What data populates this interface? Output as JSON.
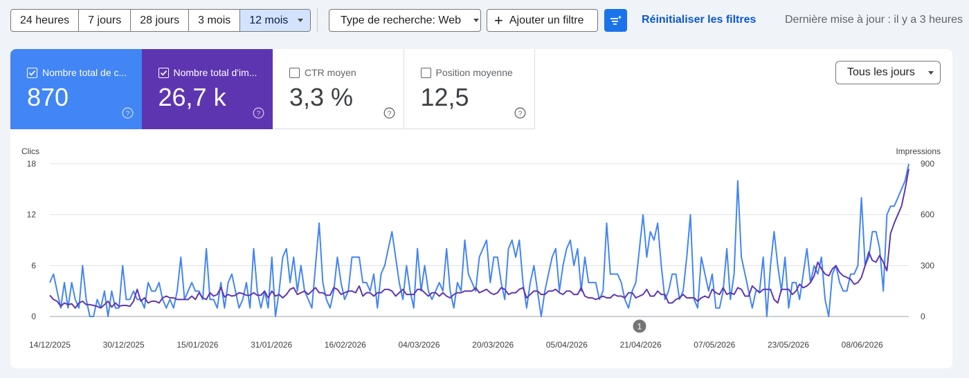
{
  "toolbar": {
    "ranges": [
      "24 heures",
      "7 jours",
      "28 jours",
      "3 mois",
      "12 mois"
    ],
    "active_range": "12 mois",
    "search_type": "Type de recherche: Web",
    "add_filter": "Ajouter un filtre",
    "reset": "Réinitialiser les filtres",
    "last_update": "Dernière mise à jour : il y a 3 heures"
  },
  "metrics": {
    "clicks": {
      "label": "Nombre total de c...",
      "value": "870",
      "checked": true,
      "color": "#4285f4"
    },
    "impressions": {
      "label": "Nombre total d'im...",
      "value": "26,7 k",
      "checked": true,
      "color": "#5e35b1"
    },
    "ctr": {
      "label": "CTR moyen",
      "value": "3,3 %",
      "checked": false
    },
    "position": {
      "label": "Position moyenne",
      "value": "12,5",
      "checked": false
    }
  },
  "days_select": "Tous les jours",
  "annotation_marker": "1",
  "chart_data": {
    "type": "line",
    "left_axis_label": "Clics",
    "right_axis_label": "Impressions",
    "left_ticks": [
      "18",
      "12",
      "6",
      "0"
    ],
    "right_ticks": [
      "900",
      "600",
      "300",
      "0"
    ],
    "ylim_left": [
      0,
      18
    ],
    "ylim_right": [
      0,
      900
    ],
    "x_tick_labels": [
      "14/12/2025",
      "30/12/2025",
      "15/01/2026",
      "31/01/2026",
      "16/02/2026",
      "04/03/2026",
      "20/03/2026",
      "05/04/2026",
      "21/04/2026",
      "07/05/2026",
      "23/05/2026",
      "08/06/2026"
    ],
    "x_range_days": 190,
    "series": [
      {
        "name": "Nombre total de clics",
        "axis": "left",
        "color": "#4285f4",
        "values": [
          4,
          5,
          3,
          1,
          4,
          1,
          4,
          2,
          1,
          6,
          2,
          0,
          0,
          2,
          1,
          3,
          0,
          3,
          1,
          1,
          6,
          2,
          2,
          3,
          2,
          2,
          1,
          4,
          3,
          3,
          4,
          2,
          1,
          2,
          1,
          3,
          7,
          2,
          3,
          4,
          3,
          3,
          2,
          8,
          2,
          2,
          1,
          4,
          1,
          4,
          5,
          3,
          1,
          2,
          4,
          1,
          8,
          3,
          1,
          3,
          1,
          7,
          0,
          3,
          7,
          8,
          4,
          7,
          3,
          6,
          3,
          2,
          1,
          6,
          11,
          4,
          2,
          1,
          3,
          7,
          4,
          2,
          3,
          7,
          7,
          7,
          4,
          4,
          3,
          5,
          1,
          5,
          6,
          8,
          10,
          7,
          4,
          2,
          6,
          3,
          1,
          8,
          3,
          6,
          3,
          2,
          3,
          4,
          3,
          8,
          3,
          1,
          4,
          3,
          9,
          5,
          4,
          3,
          7,
          8,
          9,
          4,
          7,
          7,
          4,
          2,
          8,
          9,
          7,
          9,
          4,
          1,
          4,
          6,
          3,
          0,
          3,
          5,
          7,
          8,
          3,
          6,
          8,
          9,
          6,
          8,
          3,
          7,
          4,
          4,
          4,
          2,
          3,
          11,
          5,
          5,
          5,
          4,
          2,
          1,
          3,
          4,
          8,
          12,
          7,
          10,
          9,
          11,
          6,
          2,
          3,
          5,
          5,
          2,
          3,
          7,
          12,
          2,
          1,
          7,
          5,
          3,
          5,
          1,
          1,
          3,
          8,
          2,
          5,
          16,
          7,
          5,
          3,
          1,
          3,
          3,
          7,
          0,
          6,
          10,
          6,
          3,
          7,
          1,
          4,
          4,
          2,
          5,
          8,
          4,
          6,
          5,
          7,
          2,
          0,
          5,
          6,
          4,
          3,
          3,
          5,
          5,
          6,
          14,
          6,
          7,
          10,
          10,
          8,
          3,
          12,
          13,
          13,
          14,
          15,
          16,
          18
        ],
        "note": "Values estimated from gridlines"
      },
      {
        "name": "Nombre total d'impressions",
        "axis": "right",
        "color": "#5e35b1",
        "values": [
          2.5,
          2,
          1.8,
          1.2,
          1.6,
          1.4,
          1.5,
          1,
          1.6,
          1.8,
          1.4,
          1.4,
          1.3,
          1.2,
          1,
          1.4,
          1.8,
          1.1,
          1.6,
          1.2,
          1.3,
          1.3,
          1.2,
          1.8,
          3.2,
          1.8,
          2.2,
          1.6,
          1.8,
          1.8,
          1.6,
          2.2,
          2.4,
          2.2,
          2.2,
          2,
          2,
          2,
          2,
          2.4,
          2,
          2.8,
          2.2,
          2,
          2.8,
          2.4,
          2.6,
          3.4,
          2.3,
          2.6,
          2.4,
          2.5,
          2.8,
          2.7,
          2.5,
          2.5,
          2.8,
          2.5,
          2.5,
          3,
          2.2,
          3,
          2.4,
          2.6,
          2.2,
          2.6,
          3.2,
          3.4,
          2.6,
          2.8,
          3,
          2.6,
          3,
          3.4,
          2.8,
          2.8,
          2.5,
          2.5,
          3.4,
          3.2,
          2.6,
          2.8,
          3,
          3,
          2.8,
          3.6,
          2.4,
          2.8,
          2.8,
          2.4,
          2.8,
          2.8,
          3.2,
          3.2,
          3,
          2.4,
          2.8,
          3.2,
          2.6,
          2.6,
          2.6,
          3.2,
          3.2,
          2.8,
          2.4,
          2.8,
          2.8,
          2.4,
          2.8,
          2.4,
          2.2,
          2.6,
          2.8,
          2.8,
          3,
          3,
          3,
          3.4,
          2.8,
          3,
          3.2,
          2.8,
          2.6,
          2.8,
          3.4,
          3.2,
          2.6,
          2.8,
          2.8,
          3.2,
          3.4,
          2.2,
          2.6,
          3,
          3,
          2.6,
          2.6,
          3,
          3,
          3.2,
          2.8,
          2.6,
          3,
          3,
          2.6,
          2.6,
          3.4,
          2.4,
          2.2,
          2.2,
          2,
          2.2,
          2.4,
          2.2,
          2.2,
          2.6,
          2.4,
          2.4,
          2.2,
          2.8,
          2.8,
          2.2,
          2.4,
          2.6,
          3.2,
          2.4,
          2.4,
          3,
          2.6,
          2.6,
          1.6,
          1.6,
          2,
          2.2,
          2.6,
          2.2,
          2.2,
          2.2,
          1.8,
          2.2,
          2.4,
          2.2,
          3.2,
          2.8,
          2.6,
          3.4,
          2.6,
          2.8,
          2.6,
          3.4,
          3.2,
          2.4,
          2.4,
          3.6,
          3.2,
          2.8,
          3.2,
          3.2,
          3.2,
          2,
          1.6,
          3.2,
          3.2,
          3.2,
          2.6,
          3,
          3.8,
          3.4,
          3.6,
          4,
          4.8,
          6.4,
          5.6,
          5,
          4.8,
          5.6,
          6,
          5.2,
          4.8,
          4.6,
          4.4,
          3.8,
          4,
          4.6,
          6,
          7.6,
          6.6,
          6.4,
          7.2,
          6.4,
          5.4,
          9.8,
          11,
          12,
          13,
          15,
          17.4
        ]
      }
    ]
  }
}
